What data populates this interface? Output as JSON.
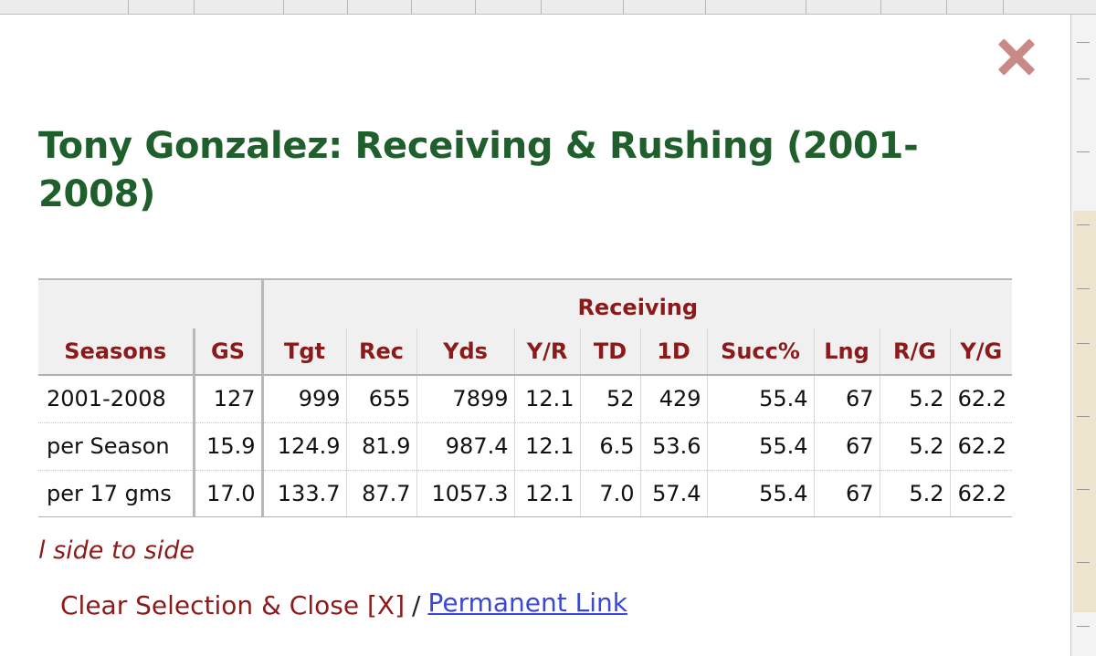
{
  "modal": {
    "title": "Tony Gonzalez: Receiving & Rushing (2001-2008)",
    "group_header": "Receiving",
    "columns": [
      "Seasons",
      "GS",
      "Tgt",
      "Rec",
      "Yds",
      "Y/R",
      "TD",
      "1D",
      "Succ%",
      "Lng",
      "R/G",
      "Y/G"
    ],
    "rows": [
      [
        "2001-2008",
        "127",
        "999",
        "655",
        "7899",
        "12.1",
        "52",
        "429",
        "55.4",
        "67",
        "5.2",
        "62.2"
      ],
      [
        "per Season",
        "15.9",
        "124.9",
        "81.9",
        "987.4",
        "12.1",
        "6.5",
        "53.6",
        "55.4",
        "67",
        "5.2",
        "62.2"
      ],
      [
        "per 17 gms",
        "17.0",
        "133.7",
        "87.7",
        "1057.3",
        "12.1",
        "7.0",
        "57.4",
        "55.4",
        "67",
        "5.2",
        "62.2"
      ]
    ],
    "scroll_hint": "l side to side",
    "clear_label": "Clear Selection & Close [X]",
    "separator": "/",
    "permalink_label": "Permanent Link",
    "close_icon": "close-x-icon"
  },
  "colors": {
    "title": "#1f5f2c",
    "header_text": "#8b1a1a",
    "link": "#3b47d6",
    "close_icon": "#c98a87"
  }
}
